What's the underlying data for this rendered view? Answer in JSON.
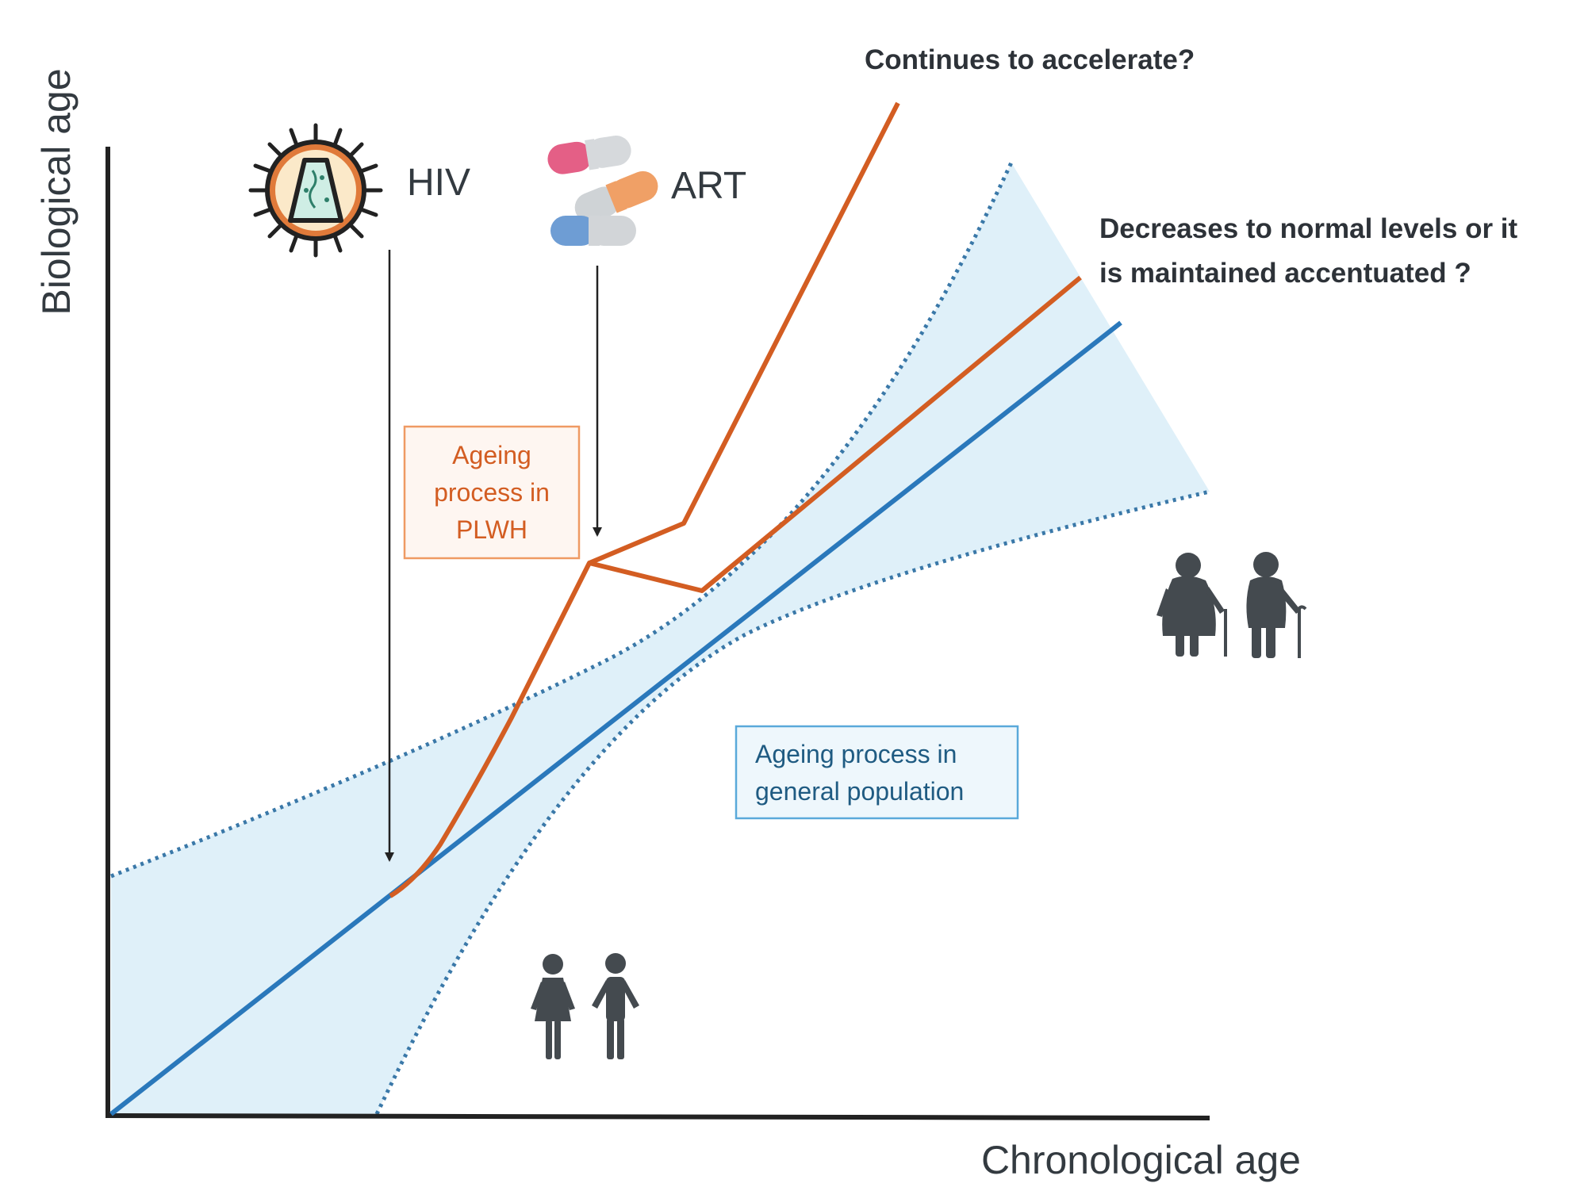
{
  "axes": {
    "x_label": "Chronological age",
    "y_label": "Biological age"
  },
  "markers": {
    "hiv": {
      "label": "HIV",
      "icon": "virus-icon"
    },
    "art": {
      "label": "ART",
      "icon": "pills-icon"
    }
  },
  "questions": {
    "accelerate": "Continues to accelerate?",
    "normal_line1": "Decreases to normal levels or it",
    "normal_line2": "is maintained accentuated ?"
  },
  "boxes": {
    "plwh": {
      "line1": "Ageing",
      "line2": "process in",
      "line3": "PLWH"
    },
    "general": {
      "line1": "Ageing process in",
      "line2": "general population"
    }
  },
  "icons": {
    "young_people": "young-couple-icon",
    "elderly_people": "elderly-couple-icon"
  },
  "colors": {
    "plwh_line": "#d35d22",
    "general_line": "#2a78bb",
    "band_fill": "#dff0f9",
    "band_edge": "#3a78a8",
    "person": "#444a4f",
    "axis": "#222222"
  }
}
